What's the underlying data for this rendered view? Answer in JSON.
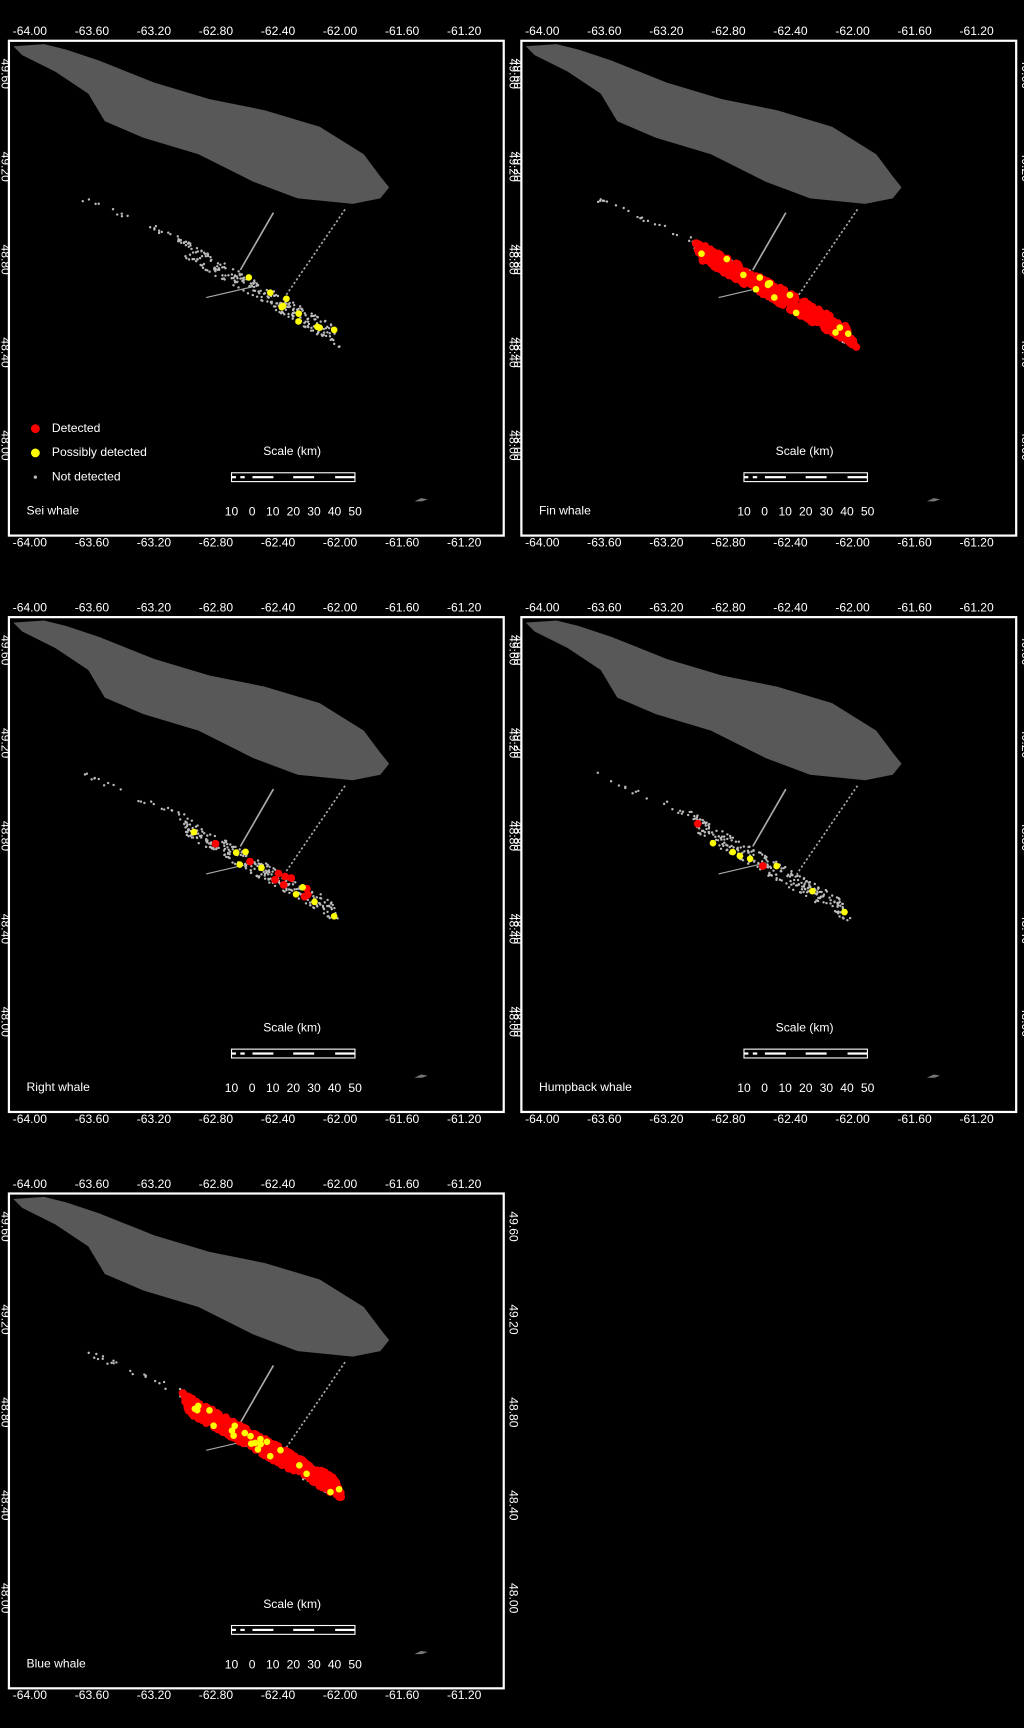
{
  "panels": [
    {
      "label": "Sei whale"
    },
    {
      "label": "Fin whale"
    },
    {
      "label": "Right whale"
    },
    {
      "label": "Humpback whale"
    },
    {
      "label": "Blue whale"
    }
  ],
  "legend": {
    "items": [
      "Detected",
      "Possibly detected",
      "Not detected"
    ]
  },
  "scale": {
    "title": "Scale (km)",
    "labels": [
      "10",
      "0",
      "10",
      "20",
      "30",
      "40",
      "50"
    ]
  },
  "longitude_ticks": [
    "-64.00",
    "-63.60",
    "-63.20",
    "-62.80",
    "-62.40",
    "-62.00",
    "-61.60",
    "-61.20"
  ],
  "latitude_ticks": [
    "49.60",
    "49.20",
    "48.80",
    "48.40",
    "48.00"
  ]
}
